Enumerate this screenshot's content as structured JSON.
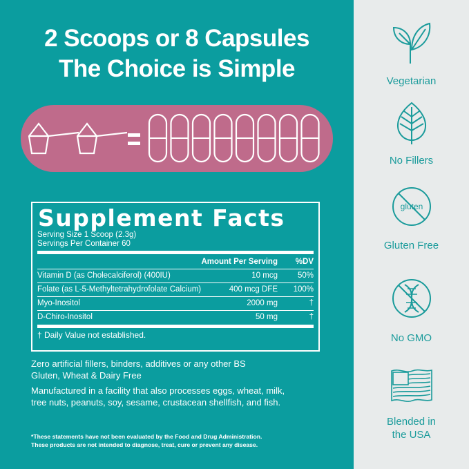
{
  "headline": {
    "line1": "2 Scoops or 8 Capsules",
    "line2": "The Choice is Simple"
  },
  "equation": {
    "scoops": 2,
    "capsules": 8,
    "symbol": "="
  },
  "supplement_facts": {
    "title": "Supplement Facts",
    "serving_size": "Serving Size 1 Scoop (2.3g)",
    "servings_per_container": "Servings Per Container 60",
    "header": {
      "amount": "Amount Per Serving",
      "dv": "%DV"
    },
    "rows": [
      {
        "name": "Vitamin D (as Cholecalciferol) (400IU)",
        "amount": "10 mcg",
        "dv": "50%"
      },
      {
        "name": "Folate (as L-5-Methyltetrahydrofolate Calcium)",
        "amount": "400 mcg DFE",
        "dv": "100%"
      },
      {
        "name": "Myo-Inositol",
        "amount": "2000 mg",
        "dv": "†"
      },
      {
        "name": "D-Chiro-Inositol",
        "amount": "50 mg",
        "dv": "†"
      }
    ],
    "footnote": "† Daily Value not established."
  },
  "claims": {
    "line1": "Zero artificial fillers, binders, additives or any other BS",
    "line2": "Gluten, Wheat & Dairy Free",
    "allergen1": "Manufactured in a facility that also processes eggs, wheat, milk,",
    "allergen2": "tree nuts, peanuts, soy, sesame, crustacean shellfish, and fish."
  },
  "disclaimer": {
    "line1": "*These statements have not been evaluated by the Food and Drug Administration.",
    "line2": "These products are not intended to diagnose, treat, cure or prevent any disease."
  },
  "features": [
    {
      "icon": "sprout-icon",
      "label": "Vegetarian"
    },
    {
      "icon": "leaf-icon",
      "label": "No Fillers"
    },
    {
      "icon": "no-gluten-icon",
      "label": "Gluten Free",
      "icon_text": "gluten"
    },
    {
      "icon": "no-gmo-icon",
      "label": "No GMO"
    },
    {
      "icon": "us-flag-icon",
      "label1": "Blended in",
      "label2": "the USA"
    }
  ],
  "colors": {
    "teal": "#0b9d9f",
    "pink": "#bf6b8b",
    "panel": "#e8ebeb",
    "icon": "#1a9b9b"
  }
}
